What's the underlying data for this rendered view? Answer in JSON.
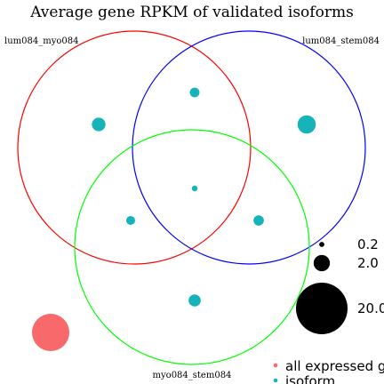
{
  "chart_data": {
    "type": "scatter",
    "title": "Average gene RPKM of validated isoforms",
    "sets": [
      {
        "name": "lum084_myo084",
        "color": "#ff0000"
      },
      {
        "name": "lum084_stem084",
        "color": "#0000ff"
      },
      {
        "name": "myo084_stem084",
        "color": "#00ff00"
      }
    ],
    "series": [
      {
        "name": "all expressed genes",
        "color": "#f8696b",
        "points": [
          {
            "region": "outside",
            "value": 10.5
          }
        ]
      },
      {
        "name": "isoform",
        "color": "#17b3ba",
        "points": [
          {
            "region": "lum084_myo084 only",
            "value": 1.4
          },
          {
            "region": "lum084_stem084 only",
            "value": 2.5
          },
          {
            "region": "myo084_stem084 only",
            "value": 1.1
          },
          {
            "region": "lum084_myo084 & lum084_stem084",
            "value": 0.7
          },
          {
            "region": "lum084_myo084 & myo084_stem084",
            "value": 0.6
          },
          {
            "region": "lum084_stem084 & myo084_stem084",
            "value": 0.8
          },
          {
            "region": "all three",
            "value": 0.25
          }
        ]
      }
    ],
    "size_legend": {
      "values": [
        0.2,
        2.0,
        20.0
      ],
      "labels": [
        "0.2",
        "2.0",
        "20.0"
      ]
    },
    "legend_labels": [
      "all expressed genes",
      "isoform"
    ]
  }
}
